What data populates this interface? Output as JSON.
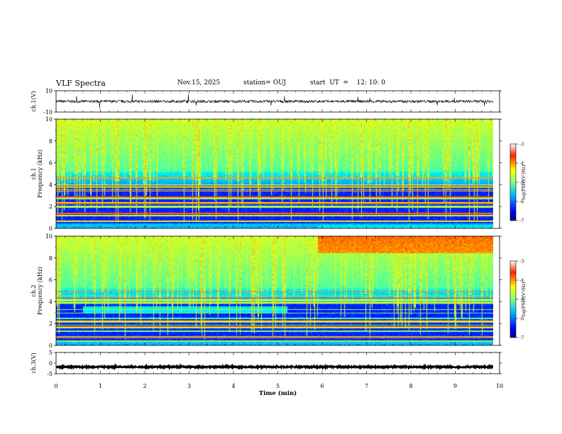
{
  "header": {
    "title": "VLF Spectra",
    "date": "Nov.15, 2025",
    "station": "station= OUJ",
    "start": "start  UT  =    12: 10: 0"
  },
  "chart_data": [
    {
      "type": "line",
      "name": "ch1-waveform",
      "ylabel": "ch.1(V)",
      "ylim": [
        -10,
        10
      ],
      "yticks": [
        10,
        -10
      ],
      "baseline": 0
    },
    {
      "type": "heatmap",
      "name": "ch1-spectrogram",
      "ylabel": "ch.1\nFrequency (kHz)",
      "ylim": [
        0,
        10
      ],
      "yticks": [
        0,
        2,
        4,
        6,
        8,
        10
      ],
      "colorbar": {
        "label": "log(PSD)(V²/Hz)",
        "ticks": [
          -3,
          -4,
          -5,
          -6,
          -7
        ]
      }
    },
    {
      "type": "heatmap",
      "name": "ch2-spectrogram",
      "ylabel": "ch.2\nFrequency (kHz)",
      "ylim": [
        0,
        10
      ],
      "yticks": [
        0,
        2,
        4,
        6,
        8,
        10
      ],
      "colorbar": {
        "label": "log(PSD)(V²/Hz)",
        "ticks": [
          -3,
          -4,
          -5,
          -6,
          -7
        ]
      }
    },
    {
      "type": "line",
      "name": "ch3-waveform",
      "ylabel": "ch.3(V)",
      "ylim": [
        -5,
        5
      ],
      "yticks": [
        5,
        0,
        -5
      ],
      "baseline": -1.8
    }
  ],
  "xaxis": {
    "label": "Time (min)",
    "xlim": [
      0,
      10
    ],
    "ticks": [
      0,
      1,
      2,
      3,
      4,
      5,
      6,
      7,
      8,
      9,
      10
    ],
    "data_end": 9.85
  },
  "colors": {
    "colormap": [
      "#00007f",
      "#0000ff",
      "#007fff",
      "#00ffff",
      "#7fff7f",
      "#ffff00",
      "#ff7f00",
      "#ff0000",
      "#7f0000"
    ],
    "axes": "#000000"
  }
}
